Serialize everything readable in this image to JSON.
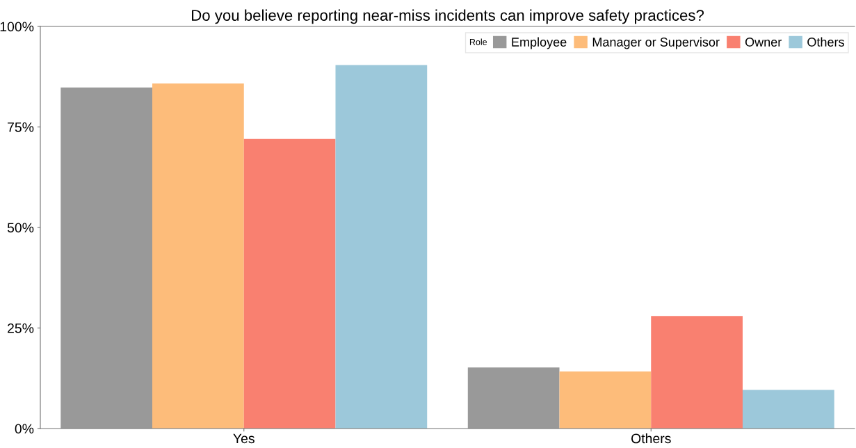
{
  "chart_data": {
    "type": "bar",
    "title": "Do you believe reporting near-miss incidents can improve safety practices?",
    "categories": [
      "Yes",
      "Others"
    ],
    "series": [
      {
        "name": "Employee",
        "color": "#999999",
        "values": [
          84.8,
          15.2
        ]
      },
      {
        "name": "Manager or Supervisor",
        "color": "#fdbc7a",
        "values": [
          85.8,
          14.2
        ]
      },
      {
        "name": "Owner",
        "color": "#f98070",
        "values": [
          72.0,
          28.0
        ]
      },
      {
        "name": "Others",
        "color": "#9cc8da",
        "values": [
          90.4,
          9.6
        ]
      }
    ],
    "legend_title": "Role",
    "legend": "top right",
    "grid": false,
    "ylim": [
      0,
      100
    ],
    "yticks": [
      {
        "value": 0,
        "label": "0%"
      },
      {
        "value": 25,
        "label": "25%"
      },
      {
        "value": 50,
        "label": "50%"
      },
      {
        "value": 75,
        "label": "75%"
      },
      {
        "value": 100,
        "label": "100%"
      }
    ]
  }
}
